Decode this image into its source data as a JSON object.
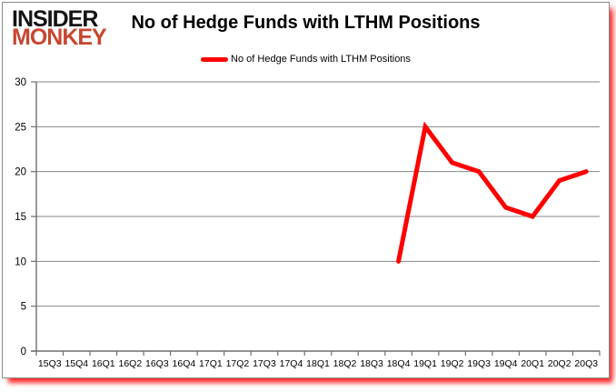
{
  "logo": {
    "line1": "INSIDER",
    "line2": "MONKEY",
    "colors": {
      "insider": "#141414",
      "monkey": "#c8472f"
    }
  },
  "header": {
    "title": "No of Hedge Funds with LTHM Positions"
  },
  "legend": {
    "label": "No of Hedge Funds with LTHM Positions",
    "line_color": "#ff0000"
  },
  "chart_data": {
    "type": "line",
    "title": "No of Hedge Funds with LTHM Positions",
    "categories": [
      "15Q3",
      "15Q4",
      "16Q1",
      "16Q2",
      "16Q3",
      "16Q4",
      "17Q1",
      "17Q2",
      "17Q3",
      "17Q4",
      "18Q1",
      "18Q2",
      "18Q3",
      "18Q4",
      "19Q1",
      "19Q2",
      "19Q3",
      "19Q4",
      "20Q1",
      "20Q2",
      "20Q3"
    ],
    "series": [
      {
        "name": "No of Hedge Funds with LTHM Positions",
        "color": "#ff0000",
        "values": [
          null,
          null,
          null,
          null,
          null,
          null,
          null,
          null,
          null,
          null,
          null,
          null,
          null,
          10,
          25,
          21,
          20,
          16,
          15,
          19,
          20
        ]
      }
    ],
    "xlabel": "",
    "ylabel": "",
    "ylim": [
      0,
      30
    ],
    "yticks": [
      0,
      5,
      10,
      15,
      20,
      25,
      30
    ],
    "grid": "horizontal",
    "legend_position": "top-center",
    "colors": {
      "grid": "#868686",
      "axis": "#6e6e6e",
      "tick_text": "#000000"
    }
  }
}
